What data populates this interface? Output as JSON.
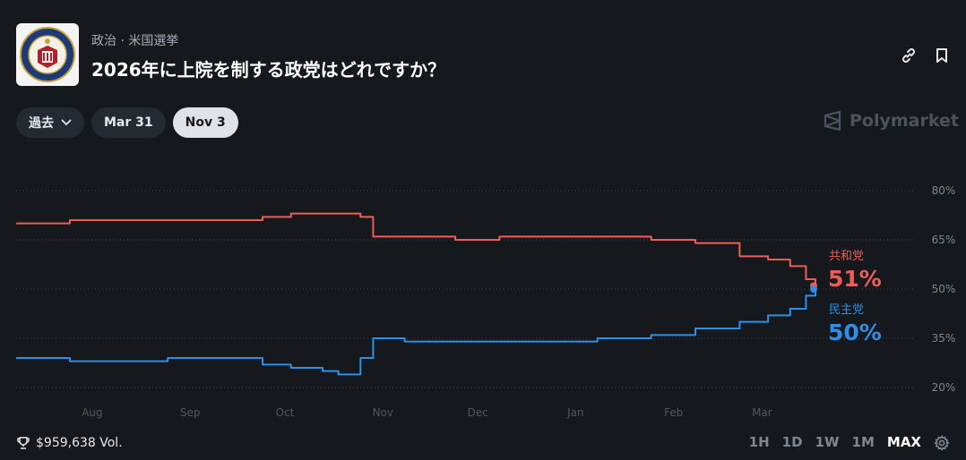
{
  "header": {
    "category": "政治 · 米国選挙",
    "title": "2026年に上院を制する政党はどれですか？"
  },
  "filters": {
    "chips": [
      "過去",
      "Mar 31",
      "Nov 3"
    ],
    "active_chip": 2
  },
  "brand": "Polymarket",
  "footer": {
    "volume": "$959,638 Vol.",
    "ranges": [
      "1H",
      "1D",
      "1W",
      "1M",
      "MAX"
    ],
    "active_range": "MAX"
  },
  "colors": {
    "rep": "#f25c54",
    "dem": "#2e8fe6",
    "background": "#15191d"
  },
  "chart_data": {
    "type": "line",
    "x": [
      "Jul 15",
      "Aug 1",
      "Aug 15",
      "Sep 1",
      "Sep 15",
      "Oct 1",
      "Oct 10",
      "Oct 20",
      "Oct 25",
      "Nov 1",
      "Nov 5",
      "Nov 15",
      "Dec 1",
      "Dec 15",
      "Jan 1",
      "Jan 15",
      "Feb 1",
      "Feb 15",
      "Mar 1",
      "Mar 10",
      "Mar 17",
      "Mar 22",
      "Mar 25"
    ],
    "series": [
      {
        "name": "共和党",
        "label": "51%",
        "color": "#f25c54",
        "values": [
          70,
          71,
          71,
          71,
          71,
          72,
          73,
          73,
          73,
          72,
          66,
          66,
          65,
          66,
          66,
          66,
          65,
          64,
          60,
          59,
          57,
          53,
          51
        ]
      },
      {
        "name": "民主党",
        "label": "50%",
        "color": "#2e8fe6",
        "values": [
          29,
          28,
          28,
          29,
          29,
          27,
          26,
          25,
          24,
          29,
          35,
          34,
          34,
          34,
          34,
          35,
          36,
          38,
          40,
          42,
          44,
          48,
          50
        ]
      }
    ],
    "x_ticks": [
      "Aug",
      "Sep",
      "Oct",
      "Nov",
      "Dec",
      "Jan",
      "Feb",
      "Mar"
    ],
    "y_ticks": [
      "80%",
      "65%",
      "50%",
      "35%",
      "20%"
    ],
    "y_tick_values": [
      80,
      65,
      50,
      35,
      20
    ],
    "ylim": [
      20,
      80
    ],
    "grid": true
  }
}
